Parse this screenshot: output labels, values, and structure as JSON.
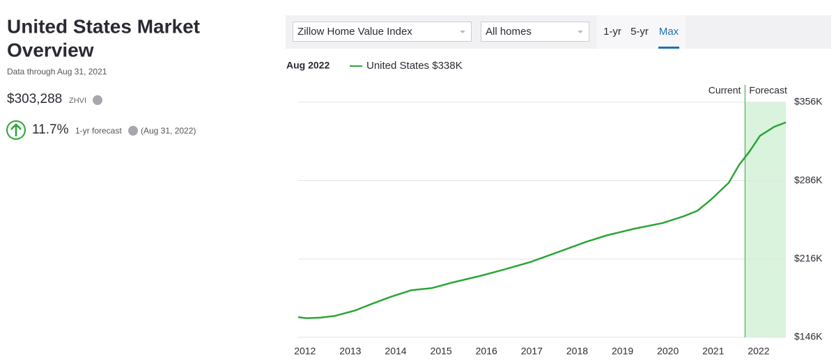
{
  "header": {
    "title_line1": "United States Market",
    "title_line2": "Overview",
    "subtitle": "Data through Aug 31, 2021"
  },
  "summary": {
    "value": "$303,288",
    "unit": "ZHVI",
    "forecast_pct": "11.7%",
    "forecast_label": "1-yr forecast",
    "forecast_date": "(Aug 31, 2022)"
  },
  "controls": {
    "metric": "Zillow Home Value Index",
    "home_type": "All homes",
    "tabs": [
      "1-yr",
      "5-yr",
      "Max"
    ],
    "active_tab": 2
  },
  "chart": {
    "type": "line",
    "date": "Aug 2022",
    "legend_value": "$338K",
    "current_label": "Current",
    "forecast_label": "Forecast",
    "forecast_start": 2021.7,
    "x": [
      2011.85,
      2012.03,
      2012.34,
      2012.65,
      2013.11,
      2013.42,
      2013.88,
      2014.34,
      2014.8,
      2015.26,
      2015.88,
      2016.34,
      2016.95,
      2017.57,
      2018.18,
      2018.65,
      2019.26,
      2019.88,
      2020.34,
      2020.65,
      2020.95,
      2021.34,
      2021.57,
      2021.8,
      2022.03,
      2022.34,
      2022.6
    ],
    "series": [
      {
        "name": "United States",
        "color": "#2aa536",
        "values": [
          164000,
          163000,
          163500,
          165000,
          170000,
          175000,
          182000,
          188000,
          190000,
          195000,
          201000,
          206000,
          213000,
          222000,
          231000,
          237000,
          243000,
          248000,
          254000,
          259000,
          269000,
          284000,
          300000,
          312000,
          326000,
          334000,
          338000
        ]
      }
    ],
    "xlim": [
      2011.85,
      2022.6
    ],
    "xticks": [
      2012,
      2013,
      2014,
      2015,
      2016,
      2017,
      2018,
      2019,
      2020,
      2021,
      2022
    ],
    "ylim": [
      146000,
      356000
    ],
    "yticks": [
      {
        "value": 146000,
        "label": "$146K"
      },
      {
        "value": 216000,
        "label": "$216K"
      },
      {
        "value": 286000,
        "label": "$286K"
      },
      {
        "value": 356000,
        "label": "$356K"
      }
    ],
    "grid": true,
    "forecast_color": "#d9f3dc"
  }
}
